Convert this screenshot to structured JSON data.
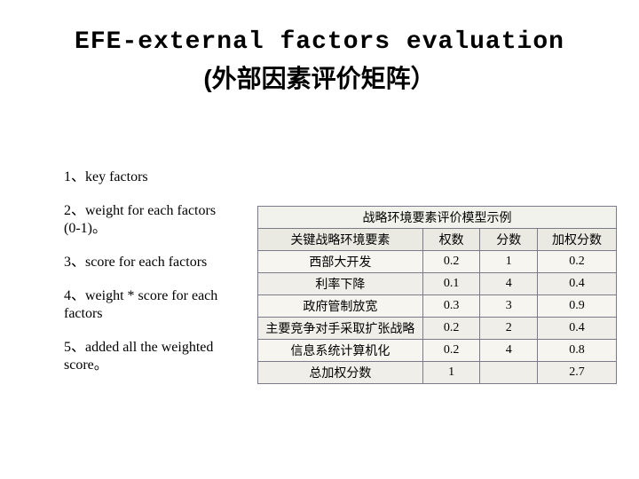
{
  "title": {
    "line1": "EFE-external factors evaluation",
    "line2": "(外部因素评价矩阵）"
  },
  "bullets": [
    "1、key factors",
    "2、weight for each factors (0-1)。",
    "3、score for each factors",
    "4、weight * score for each factors",
    "5、added all the weighted score。"
  ],
  "table": {
    "caption": "战略环境要素评价模型示例",
    "border_color": "#7a7a8a",
    "title_bg": "#f2f2ec",
    "header_bg": "#eae9e2",
    "body_bg_odd": "#f6f5f0",
    "body_bg_even": "#efeee8",
    "columns": [
      "关键战略环境要素",
      "权数",
      "分数",
      "加权分数"
    ],
    "rows": [
      [
        "西部大开发",
        "0.2",
        "1",
        "0.2"
      ],
      [
        "利率下降",
        "0.1",
        "4",
        "0.4"
      ],
      [
        "政府管制放宽",
        "0.3",
        "3",
        "0.9"
      ],
      [
        "主要竞争对手采取扩张战略",
        "0.2",
        "2",
        "0.4"
      ],
      [
        "信息系统计算机化",
        "0.2",
        "4",
        "0.8"
      ]
    ],
    "total_row": [
      "总加权分数",
      "1",
      "",
      "2.7"
    ]
  },
  "fonts": {
    "title_size_pt": 21,
    "bullet_size_pt": 12,
    "table_size_pt": 10.5
  },
  "colors": {
    "text": "#000000",
    "background": "#ffffff"
  }
}
